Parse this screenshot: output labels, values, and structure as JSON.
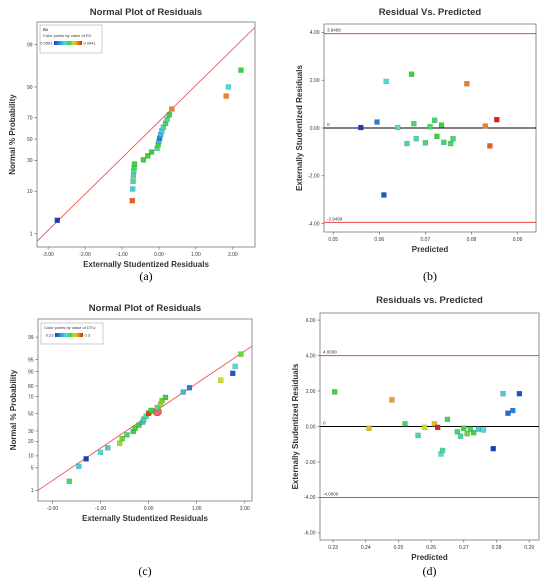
{
  "chart_data": [
    {
      "type": "scatter",
      "panel": "a",
      "caption": "(a)",
      "title": "Normal Plot of Residuals",
      "xlabel": "Externally Studentized Residuals",
      "ylabel": "Normal % Probability",
      "xlim": [
        -3.3,
        2.6
      ],
      "xticks": [
        -3.0,
        -2.0,
        -1.0,
        0.0,
        1.0,
        2.0
      ],
      "xtick_labels": [
        "-3.00",
        "-2.00",
        "-1.00",
        "0.00",
        "1.00",
        "2.00"
      ],
      "yscale": "probability",
      "yticks": [
        1,
        10,
        30,
        50,
        70,
        90,
        99
      ],
      "ylim": [
        0.4,
        99.8
      ],
      "legend": {
        "title": "R1",
        "subtitle": "Color points by value of R1:",
        "min_label": "0.0561",
        "max_label": "0.0941",
        "placement": "top-left"
      },
      "fit_line": [
        [
          -3.3,
          0.6
        ],
        [
          2.6,
          99.7
        ]
      ],
      "points": [
        {
          "x": -2.75,
          "y": 2.3,
          "c": 0.0
        },
        {
          "x": -0.72,
          "y": 6.5,
          "c": 0.9
        },
        {
          "x": -0.71,
          "y": 11.0,
          "c": 0.35
        },
        {
          "x": -0.7,
          "y": 15.0,
          "c": 0.45
        },
        {
          "x": -0.69,
          "y": 18.5,
          "c": 0.45
        },
        {
          "x": -0.68,
          "y": 21.5,
          "c": 0.45
        },
        {
          "x": -0.67,
          "y": 24.5,
          "c": 0.5
        },
        {
          "x": -0.66,
          "y": 27.0,
          "c": 0.55
        },
        {
          "x": -0.42,
          "y": 30.5,
          "c": 0.55
        },
        {
          "x": -0.3,
          "y": 34.0,
          "c": 0.55
        },
        {
          "x": -0.2,
          "y": 37.5,
          "c": 0.55
        },
        {
          "x": -0.05,
          "y": 41.0,
          "c": 0.45
        },
        {
          "x": -0.02,
          "y": 44.5,
          "c": 0.55
        },
        {
          "x": 0.0,
          "y": 48.0,
          "c": 0.3
        },
        {
          "x": 0.02,
          "y": 51.0,
          "c": 0.15
        },
        {
          "x": 0.05,
          "y": 54.5,
          "c": 0.3
        },
        {
          "x": 0.08,
          "y": 58.0,
          "c": 0.35
        },
        {
          "x": 0.12,
          "y": 61.5,
          "c": 0.45
        },
        {
          "x": 0.18,
          "y": 65.0,
          "c": 0.5
        },
        {
          "x": 0.22,
          "y": 68.5,
          "c": 0.45
        },
        {
          "x": 0.28,
          "y": 72.5,
          "c": 0.55
        },
        {
          "x": 0.35,
          "y": 77.0,
          "c": 0.85
        },
        {
          "x": 1.82,
          "y": 85.5,
          "c": 0.85
        },
        {
          "x": 1.88,
          "y": 90.0,
          "c": 0.4
        },
        {
          "x": 2.22,
          "y": 95.5,
          "c": 0.55
        }
      ]
    },
    {
      "type": "scatter",
      "panel": "b",
      "caption": "(b)",
      "title": "Residual Vs. Predicted",
      "xlabel": "Predicted",
      "ylabel": "Externally Studentized Residuals",
      "xlim": [
        0.048,
        0.094
      ],
      "xticks": [
        0.05,
        0.06,
        0.07,
        0.08,
        0.09
      ],
      "xtick_labels": [
        "0.05",
        "0.06",
        "0.07",
        "0.08",
        "0.09"
      ],
      "ylim": [
        -4.35,
        4.35
      ],
      "yticks": [
        -4.0,
        -2.0,
        0.0,
        2.0,
        4.0
      ],
      "ytick_labels": [
        "-4.00",
        "-2.00",
        "0.00",
        "2.00",
        "4.00"
      ],
      "reference_lines": [
        {
          "y": 3.9499,
          "label": "3.9499",
          "color": "#e84545"
        },
        {
          "y": 0,
          "label": "0",
          "color": "#000000"
        },
        {
          "y": -3.9499,
          "label": "-3.9499",
          "color": "#e84545"
        }
      ],
      "points": [
        {
          "x": 0.056,
          "y": 0.02,
          "c": 0.0
        },
        {
          "x": 0.0595,
          "y": 0.25,
          "c": 0.15
        },
        {
          "x": 0.061,
          "y": -2.8,
          "c": 0.05
        },
        {
          "x": 0.0615,
          "y": 1.95,
          "c": 0.4
        },
        {
          "x": 0.064,
          "y": 0.02,
          "c": 0.4
        },
        {
          "x": 0.066,
          "y": -0.65,
          "c": 0.45
        },
        {
          "x": 0.067,
          "y": 2.25,
          "c": 0.55
        },
        {
          "x": 0.0675,
          "y": 0.18,
          "c": 0.5
        },
        {
          "x": 0.068,
          "y": -0.45,
          "c": 0.45
        },
        {
          "x": 0.07,
          "y": -0.62,
          "c": 0.5
        },
        {
          "x": 0.071,
          "y": 0.05,
          "c": 0.5
        },
        {
          "x": 0.072,
          "y": 0.32,
          "c": 0.5
        },
        {
          "x": 0.0725,
          "y": -0.35,
          "c": 0.55
        },
        {
          "x": 0.0735,
          "y": 0.12,
          "c": 0.55
        },
        {
          "x": 0.074,
          "y": -0.6,
          "c": 0.5
        },
        {
          "x": 0.0755,
          "y": -0.65,
          "c": 0.5
        },
        {
          "x": 0.076,
          "y": -0.45,
          "c": 0.5
        },
        {
          "x": 0.079,
          "y": 1.85,
          "c": 0.85
        },
        {
          "x": 0.083,
          "y": 0.08,
          "c": 0.85
        },
        {
          "x": 0.084,
          "y": -0.75,
          "c": 0.9
        },
        {
          "x": 0.0855,
          "y": 0.35,
          "c": 1.0
        }
      ]
    },
    {
      "type": "scatter",
      "panel": "c",
      "caption": "(c)",
      "title": "Normal Plot of Residuals",
      "xlabel": "Externally Studentized Residuals",
      "ylabel": "Normal % Probability",
      "xlim": [
        -2.3,
        2.15
      ],
      "xticks": [
        -2.0,
        -1.0,
        0.0,
        1.0,
        2.0
      ],
      "xtick_labels": [
        "-2.00",
        "-1.00",
        "0.00",
        "1.00",
        "2.00"
      ],
      "yscale": "probability",
      "yticks": [
        1,
        5,
        10,
        20,
        30,
        50,
        70,
        80,
        90,
        95,
        99
      ],
      "ylim": [
        0.4,
        99.8
      ],
      "legend": {
        "title": "",
        "subtitle": "Color points by value of DTU:",
        "min_label": "0.23",
        "max_label": "0.3",
        "placement": "top-left"
      },
      "fit_line": [
        [
          -2.3,
          1.0
        ],
        [
          2.15,
          98.0
        ]
      ],
      "points": [
        {
          "x": -1.65,
          "y": 2.0,
          "c": 0.5
        },
        {
          "x": -1.45,
          "y": 5.5,
          "c": 0.35
        },
        {
          "x": -1.3,
          "y": 8.5,
          "c": 0.0
        },
        {
          "x": -1.0,
          "y": 12.0,
          "c": 0.4
        },
        {
          "x": -0.85,
          "y": 15.0,
          "c": 0.35
        },
        {
          "x": -0.6,
          "y": 18.5,
          "c": 0.65
        },
        {
          "x": -0.55,
          "y": 22.5,
          "c": 0.6
        },
        {
          "x": -0.45,
          "y": 26.0,
          "c": 0.5
        },
        {
          "x": -0.32,
          "y": 29.5,
          "c": 0.55
        },
        {
          "x": -0.28,
          "y": 33.0,
          "c": 0.55
        },
        {
          "x": -0.2,
          "y": 36.5,
          "c": 0.55
        },
        {
          "x": -0.12,
          "y": 40.0,
          "c": 0.3
        },
        {
          "x": -0.1,
          "y": 43.5,
          "c": 0.45
        },
        {
          "x": -0.05,
          "y": 47.0,
          "c": 0.45
        },
        {
          "x": 0.0,
          "y": 50.5,
          "c": 0.95
        },
        {
          "x": 0.05,
          "y": 54.0,
          "c": 0.55
        },
        {
          "x": 0.18,
          "y": 57.5,
          "c": 0.45
        },
        {
          "x": 0.25,
          "y": 61.5,
          "c": 0.65
        },
        {
          "x": 0.28,
          "y": 65.5,
          "c": 0.6
        },
        {
          "x": 0.35,
          "y": 69.0,
          "c": 0.55
        },
        {
          "x": 0.72,
          "y": 74.5,
          "c": 0.3
        },
        {
          "x": 0.85,
          "y": 78.5,
          "c": 0.15
        },
        {
          "x": 1.5,
          "y": 84.5,
          "c": 0.7
        },
        {
          "x": 1.75,
          "y": 89.0,
          "c": 0.05
        },
        {
          "x": 1.8,
          "y": 92.5,
          "c": 0.4
        },
        {
          "x": 1.92,
          "y": 96.5,
          "c": 0.6
        }
      ],
      "highlight_point": {
        "x": 0.18,
        "y": 52.5
      }
    },
    {
      "type": "scatter",
      "panel": "d",
      "caption": "(d)",
      "title": "Residuals vs. Predicted",
      "xlabel": "Predicted",
      "ylabel": "Externally Studentized Residuals",
      "xlim": [
        0.226,
        0.293
      ],
      "xticks": [
        0.23,
        0.24,
        0.25,
        0.26,
        0.27,
        0.28,
        0.29
      ],
      "xtick_labels": [
        "0.23",
        "0.24",
        "0.25",
        "0.26",
        "0.27",
        "0.28",
        "0.29"
      ],
      "ylim": [
        -6.4,
        6.4
      ],
      "yticks": [
        -6.0,
        -4.0,
        -2.0,
        0.0,
        2.0,
        4.0,
        6.0
      ],
      "ytick_labels": [
        "-6.00",
        "-4.00",
        "-2.00",
        "0.00",
        "2.00",
        "4.00",
        "6.00"
      ],
      "reference_lines": [
        {
          "y": 4.0,
          "label": "4.0000",
          "color": "#e84545"
        },
        {
          "y": 0,
          "label": "0",
          "color": "#000000"
        },
        {
          "y": -4.0,
          "label": "-4.0000",
          "color": "#e84545"
        }
      ],
      "points": [
        {
          "x": 0.2305,
          "y": 1.95,
          "c": 0.55
        },
        {
          "x": 0.241,
          "y": -0.1,
          "c": 0.75
        },
        {
          "x": 0.248,
          "y": 1.5,
          "c": 0.8
        },
        {
          "x": 0.252,
          "y": 0.15,
          "c": 0.5
        },
        {
          "x": 0.256,
          "y": -0.5,
          "c": 0.45
        },
        {
          "x": 0.258,
          "y": -0.05,
          "c": 0.7
        },
        {
          "x": 0.261,
          "y": 0.15,
          "c": 0.75
        },
        {
          "x": 0.262,
          "y": -0.05,
          "c": 1.0
        },
        {
          "x": 0.263,
          "y": -1.55,
          "c": 0.4
        },
        {
          "x": 0.2635,
          "y": -1.35,
          "c": 0.45
        },
        {
          "x": 0.265,
          "y": 0.4,
          "c": 0.5
        },
        {
          "x": 0.268,
          "y": -0.3,
          "c": 0.5
        },
        {
          "x": 0.269,
          "y": -0.55,
          "c": 0.45
        },
        {
          "x": 0.27,
          "y": -0.1,
          "c": 0.55
        },
        {
          "x": 0.271,
          "y": -0.4,
          "c": 0.6
        },
        {
          "x": 0.272,
          "y": -0.15,
          "c": 0.5
        },
        {
          "x": 0.273,
          "y": -0.35,
          "c": 0.55
        },
        {
          "x": 0.2745,
          "y": -0.15,
          "c": 0.35
        },
        {
          "x": 0.276,
          "y": -0.2,
          "c": 0.4
        },
        {
          "x": 0.279,
          "y": -1.25,
          "c": 0.0
        },
        {
          "x": 0.282,
          "y": 1.85,
          "c": 0.35
        },
        {
          "x": 0.2835,
          "y": 0.75,
          "c": 0.1
        },
        {
          "x": 0.285,
          "y": 0.9,
          "c": 0.15
        },
        {
          "x": 0.287,
          "y": 1.85,
          "c": 0.05
        }
      ]
    }
  ]
}
